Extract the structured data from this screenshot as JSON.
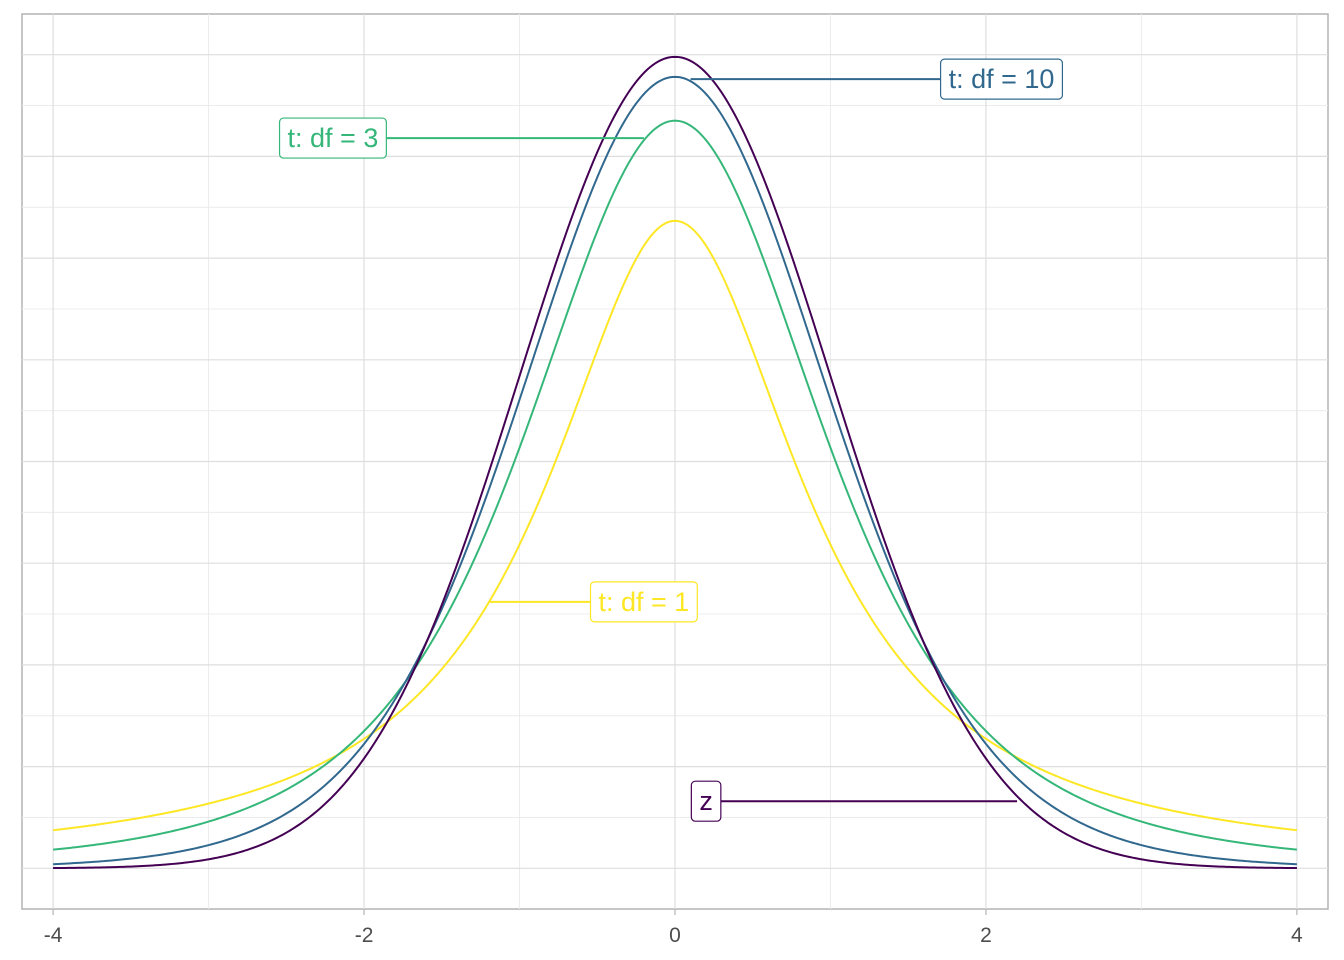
{
  "chart_data": {
    "type": "line",
    "title": "",
    "xlabel": "",
    "ylabel": "",
    "xlim": [
      -4.2,
      4.2
    ],
    "ylim": [
      -0.02,
      0.42
    ],
    "x_ticks": [
      -4,
      -2,
      0,
      2,
      4
    ],
    "x_tick_labels": [
      "-4",
      "-2",
      "0",
      "2",
      "4"
    ],
    "y_ticks": [
      0,
      0.05,
      0.1,
      0.15,
      0.2,
      0.25,
      0.3,
      0.35,
      0.4
    ],
    "y_tick_labels_shown": false,
    "grid": true,
    "x_range": [
      -4,
      4
    ],
    "series": [
      {
        "name": "z",
        "distribution": "normal",
        "color": "#440154",
        "label": "z",
        "label_at": {
          "x": 0.2,
          "y": 0.033
        },
        "leader_to": {
          "x": 2.2,
          "y": 0.033
        }
      },
      {
        "name": "t: df = 10",
        "distribution": "t",
        "df": 10,
        "color": "#31688E",
        "label": "t: df = 10",
        "label_at": {
          "x": 2.1,
          "y": 0.388
        },
        "leader_to": {
          "x": 0.1,
          "y": 0.388
        }
      },
      {
        "name": "t: df = 3",
        "distribution": "t",
        "df": 3,
        "color": "#35B779",
        "label": "t: df = 3",
        "label_at": {
          "x": -2.2,
          "y": 0.359
        },
        "leader_to": {
          "x": -0.2,
          "y": 0.359
        }
      },
      {
        "name": "t: df = 1",
        "distribution": "t",
        "df": 1,
        "color": "#FDE725",
        "label": "t: df = 1",
        "label_at": {
          "x": -0.2,
          "y": 0.131
        },
        "leader_to": {
          "x": -1.2,
          "y": 0.131
        }
      }
    ]
  }
}
